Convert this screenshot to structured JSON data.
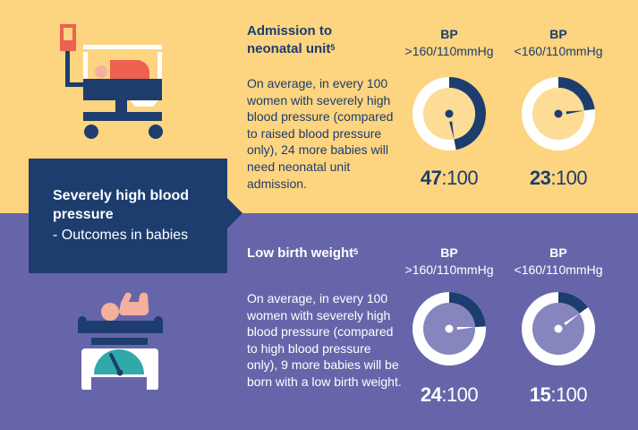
{
  "colors": {
    "top_bg": "#fdd47f",
    "bottom_bg": "#6765aa",
    "navy": "#1c3d6e",
    "top_inner": "#fddc96",
    "bottom_inner": "#8785bd",
    "coral": "#ec6150",
    "pink": "#f5b09d",
    "teal": "#30a9a8"
  },
  "callout": {
    "title": "Severely high blood pressure",
    "subtitle": "- Outcomes in babies"
  },
  "icons": {
    "top": "incubator-icon",
    "bottom": "baby-scale-icon"
  },
  "sections": [
    {
      "heading": "Admission to neonatal unit",
      "heading_line1": "Admission to",
      "heading_line2": "neonatal unit",
      "footnote": "5",
      "description": "On average, in every 100 women with severely high blood pressure (compared to raised blood pressure only), 24 more babies will need neonatal unit admission.",
      "columns": [
        {
          "label": "BP",
          "sublabel": ">160/110mmHg",
          "value": "47",
          "denominator": ":100"
        },
        {
          "label": "BP",
          "sublabel": "<160/110mmHg",
          "value": "23",
          "denominator": ":100"
        }
      ]
    },
    {
      "heading": "Low birth weight",
      "footnote": "5",
      "description": "On average, in every 100 women with severely high blood pressure (compared to high blood pressure only), 9 more babies will be born with a low birth weight.",
      "columns": [
        {
          "label": "BP",
          "sublabel": ">160/110mmHg",
          "value": "24",
          "denominator": ":100"
        },
        {
          "label": "BP",
          "sublabel": "<160/110mmHg",
          "value": "15",
          "denominator": ":100"
        }
      ]
    }
  ],
  "chart_data": {
    "type": "pie",
    "title": "Severely high blood pressure - Outcomes in babies",
    "charts": [
      {
        "outcome": "Admission to neonatal unit",
        "category": ">160/110mmHg",
        "value": 47,
        "total": 100
      },
      {
        "outcome": "Admission to neonatal unit",
        "category": "<160/110mmHg",
        "value": 23,
        "total": 100
      },
      {
        "outcome": "Low birth weight",
        "category": ">160/110mmHg",
        "value": 24,
        "total": 100
      },
      {
        "outcome": "Low birth weight",
        "category": "<160/110mmHg",
        "value": 15,
        "total": 100
      }
    ]
  }
}
